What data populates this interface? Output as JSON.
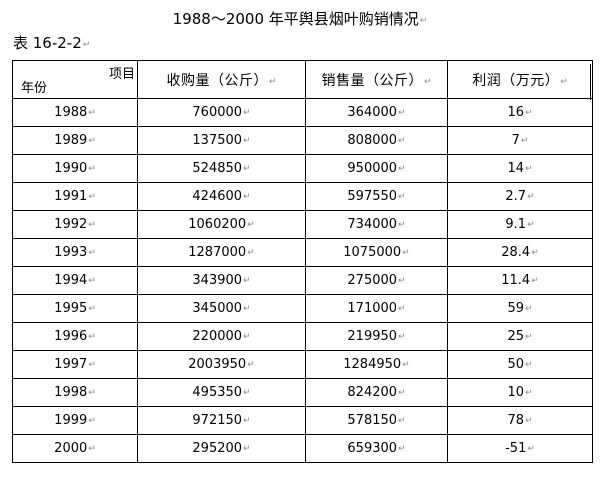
{
  "title": "1988～2000 年平舆县烟叶购销情况",
  "table_label": "表 16-2-2",
  "header": {
    "corner_top": "项目",
    "corner_bottom": "年份",
    "col_purchase": "收购量（公斤）",
    "col_sales": "销售量（公斤）",
    "col_profit": "利润（万元）"
  },
  "rows": [
    {
      "year": "1988",
      "purchase": "760000",
      "sales": "364000",
      "profit": "16"
    },
    {
      "year": "1989",
      "purchase": "137500",
      "sales": "808000",
      "profit": "7"
    },
    {
      "year": "1990",
      "purchase": "524850",
      "sales": "950000",
      "profit": "14"
    },
    {
      "year": "1991",
      "purchase": "424600",
      "sales": "597550",
      "profit": "2.7"
    },
    {
      "year": "1992",
      "purchase": "1060200",
      "sales": "734000",
      "profit": "9.1"
    },
    {
      "year": "1993",
      "purchase": "1287000",
      "sales": "1075000",
      "profit": "28.4"
    },
    {
      "year": "1994",
      "purchase": "343900",
      "sales": "275000",
      "profit": "11.4"
    },
    {
      "year": "1995",
      "purchase": "345000",
      "sales": "171000",
      "profit": "59"
    },
    {
      "year": "1996",
      "purchase": "220000",
      "sales": "219950",
      "profit": "25"
    },
    {
      "year": "1997",
      "purchase": "2003950",
      "sales": "1284950",
      "profit": "50"
    },
    {
      "year": "1998",
      "purchase": "495350",
      "sales": "824200",
      "profit": "10"
    },
    {
      "year": "1999",
      "purchase": "972150",
      "sales": "578150",
      "profit": "78"
    },
    {
      "year": "2000",
      "purchase": "295200",
      "sales": "659300",
      "profit": "-51"
    }
  ],
  "paragraph_mark": "↵"
}
